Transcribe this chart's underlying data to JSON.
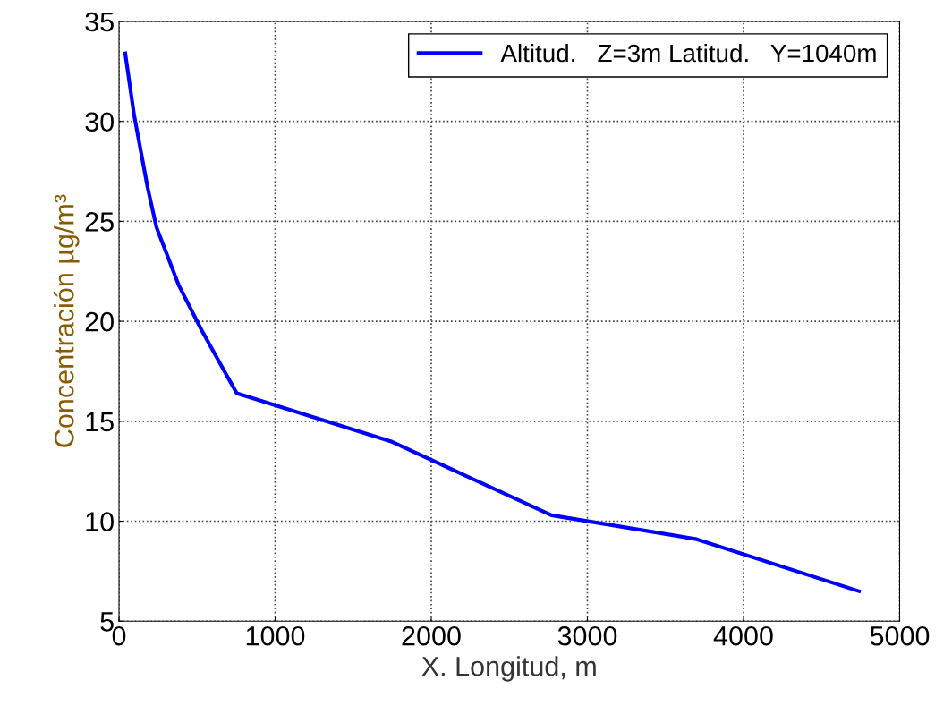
{
  "chart_data": {
    "type": "line",
    "xlabel": "X. Longitud, m",
    "ylabel": "Concentración µg/m³",
    "series": [
      {
        "name": "Altitud.   Z=3m Latitud.   Y=1040m",
        "color": "#0000ff",
        "x": [
          40,
          97,
          183,
          240,
          383,
          526,
          611,
          754,
          1740,
          2770,
          3700,
          4740
        ],
        "values": [
          33.4,
          30.3,
          26.7,
          24.7,
          21.8,
          19.6,
          18.4,
          16.4,
          14.0,
          10.3,
          9.1,
          6.5
        ]
      }
    ],
    "xlim": [
      0,
      5000
    ],
    "xticks": [
      0,
      1000,
      2000,
      3000,
      4000,
      5000
    ],
    "ylim": [
      5,
      35
    ],
    "yticks": [
      5,
      10,
      15,
      20,
      25,
      30,
      35
    ],
    "grid": true,
    "legend": "top right",
    "marker": "none",
    "line_style": "solid"
  }
}
